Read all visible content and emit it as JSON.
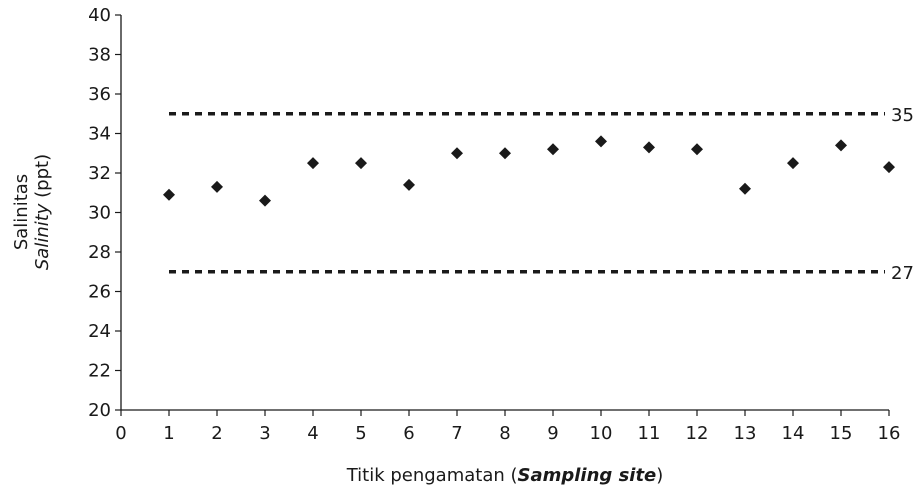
{
  "chart_data": {
    "type": "scatter",
    "xlabel": {
      "prefix": "Titik pengamatan (",
      "italic": "Sampling site",
      "suffix": ")"
    },
    "ylabel": {
      "line1": "Salinitas",
      "italic": "Salinity",
      "suffix": " (ppt)"
    },
    "xlim": [
      0,
      16
    ],
    "ylim": [
      20,
      40
    ],
    "x_ticks": [
      0,
      1,
      2,
      3,
      4,
      5,
      6,
      7,
      8,
      9,
      10,
      11,
      12,
      13,
      14,
      15,
      16
    ],
    "y_ticks": [
      20,
      22,
      24,
      26,
      28,
      30,
      32,
      34,
      36,
      38,
      40
    ],
    "grid": false,
    "marker": "diamond",
    "marker_color": "#1a1a1a",
    "series": [
      {
        "x": [
          1,
          2,
          3,
          4,
          5,
          6,
          7,
          8,
          9,
          10,
          11,
          12,
          13,
          14,
          15,
          16
        ],
        "y": [
          30.9,
          31.3,
          30.6,
          32.5,
          32.5,
          31.4,
          33.0,
          33.0,
          33.2,
          33.6,
          33.3,
          33.2,
          31.2,
          32.5,
          33.4,
          32.3
        ]
      }
    ],
    "reference_lines": [
      {
        "value": 35,
        "label": "35",
        "style": "dotted"
      },
      {
        "value": 27,
        "label": "27",
        "style": "dotted"
      }
    ]
  }
}
